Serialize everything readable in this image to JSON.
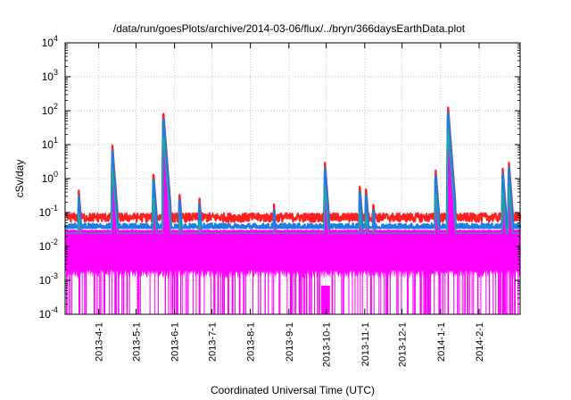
{
  "chart_data": {
    "type": "line",
    "title": "/data/run/goesPlots/archive/2014-03-06/flux/../bryn/366daysEarthData.plot",
    "xlabel": "Coordinated Universal Time (UTC)",
    "ylabel": "cSv/day",
    "x_scale": "time",
    "y_scale": "log",
    "x_range": [
      "2013-03-05",
      "2014-03-06"
    ],
    "ylim": [
      0.0001,
      10000
    ],
    "y_ticks": [
      {
        "value": 0.0001,
        "base": "10",
        "exp": "-4"
      },
      {
        "value": 0.001,
        "base": "10",
        "exp": "-3"
      },
      {
        "value": 0.01,
        "base": "10",
        "exp": "-2"
      },
      {
        "value": 0.1,
        "base": "10",
        "exp": "-1"
      },
      {
        "value": 1,
        "base": "10",
        "exp": "0"
      },
      {
        "value": 10,
        "base": "10",
        "exp": "1"
      },
      {
        "value": 100,
        "base": "10",
        "exp": "2"
      },
      {
        "value": 1000,
        "base": "10",
        "exp": "3"
      },
      {
        "value": 10000,
        "base": "10",
        "exp": "4"
      }
    ],
    "x_ticks": [
      {
        "date": "2013-04-01",
        "label": "2013-4-1"
      },
      {
        "date": "2013-05-01",
        "label": "2013-5-1"
      },
      {
        "date": "2013-06-01",
        "label": "2013-6-1"
      },
      {
        "date": "2013-07-01",
        "label": "2013-7-1"
      },
      {
        "date": "2013-08-01",
        "label": "2013-8-1"
      },
      {
        "date": "2013-09-01",
        "label": "2013-9-1"
      },
      {
        "date": "2013-10-01",
        "label": "2013-10-1"
      },
      {
        "date": "2013-11-01",
        "label": "2013-11-1"
      },
      {
        "date": "2013-12-01",
        "label": "2013-12-1"
      },
      {
        "date": "2014-01-01",
        "label": "2014-1-1"
      },
      {
        "date": "2014-02-01",
        "label": "2014-2-1"
      }
    ],
    "grid": true,
    "legend": "none",
    "series_baseline": [
      {
        "color": "#ff2020",
        "baseline": 0.07
      },
      {
        "color": "#1e7fe0",
        "baseline": 0.05
      },
      {
        "color": "#20b090",
        "baseline": 0.035
      },
      {
        "color": "#ff00ff",
        "baseline": 0.02
      }
    ],
    "events": [
      {
        "date": "2013-03-16",
        "peak": 0.45
      },
      {
        "date": "2013-04-12",
        "peak": 10
      },
      {
        "date": "2013-05-15",
        "peak": 1.6
      },
      {
        "date": "2013-05-23",
        "peak": 100
      },
      {
        "date": "2013-06-05",
        "peak": 0.4
      },
      {
        "date": "2013-06-21",
        "peak": 0.3
      },
      {
        "date": "2013-08-20",
        "peak": 0.18
      },
      {
        "date": "2013-09-30",
        "peak": 3
      },
      {
        "date": "2013-10-28",
        "peak": 0.65
      },
      {
        "date": "2013-11-02",
        "peak": 0.55
      },
      {
        "date": "2013-11-08",
        "peak": 0.2
      },
      {
        "date": "2013-12-28",
        "peak": 2
      },
      {
        "date": "2014-01-07",
        "peak": 140
      },
      {
        "date": "2014-02-20",
        "peak": 2
      },
      {
        "date": "2014-02-25",
        "peak": 3
      }
    ]
  }
}
